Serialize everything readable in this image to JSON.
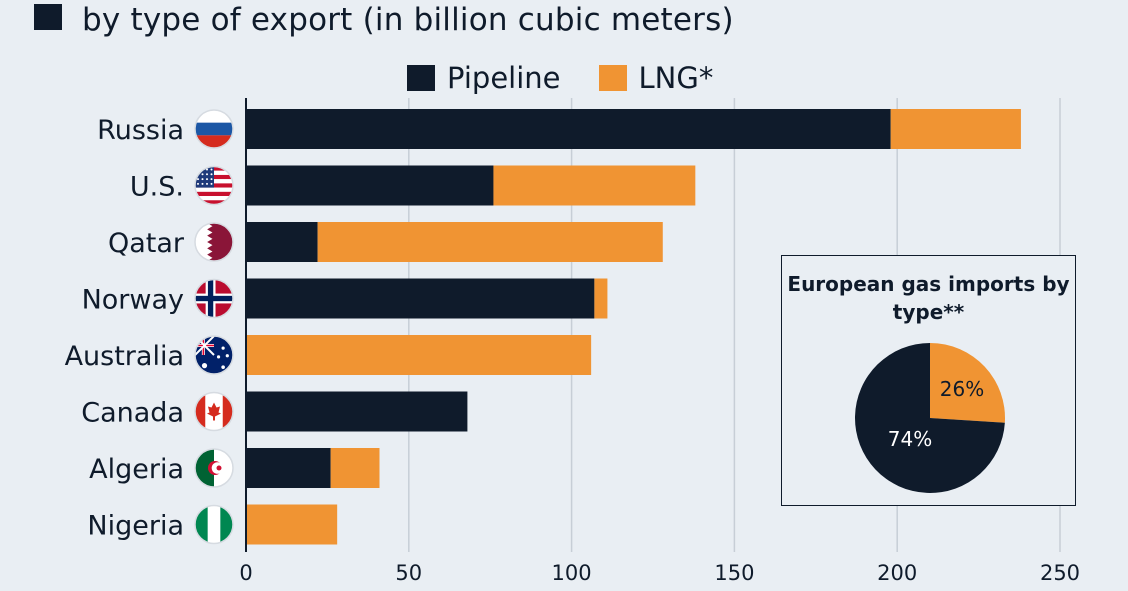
{
  "subtitle": "by type of export (in billion cubic meters)",
  "legend": [
    {
      "label": "Pipeline",
      "color": "#0f1b2b"
    },
    {
      "label": "LNG*",
      "color": "#f09433"
    }
  ],
  "colors": {
    "pipeline": "#0f1b2b",
    "lng": "#f09433",
    "grid": "#c7ced6",
    "background": "#e9eef3"
  },
  "chart_data": [
    {
      "type": "bar",
      "orientation": "horizontal",
      "stacked": true,
      "categories": [
        "Russia",
        "U.S.",
        "Qatar",
        "Norway",
        "Australia",
        "Canada",
        "Algeria",
        "Nigeria"
      ],
      "flag_icons": [
        "russia-flag-icon",
        "us-flag-icon",
        "qatar-flag-icon",
        "norway-flag-icon",
        "australia-flag-icon",
        "canada-flag-icon",
        "algeria-flag-icon",
        "nigeria-flag-icon"
      ],
      "series": [
        {
          "name": "Pipeline",
          "values": [
            198,
            76,
            22,
            107,
            0,
            68,
            26,
            0
          ]
        },
        {
          "name": "LNG*",
          "values": [
            40,
            62,
            106,
            4,
            106,
            0,
            15,
            28
          ]
        }
      ],
      "xlim": [
        0,
        250
      ],
      "xticks": [
        0,
        50,
        100,
        150,
        200,
        250
      ],
      "grid": true,
      "legend_position": "top"
    },
    {
      "type": "pie",
      "title": "European gas imports by type**",
      "labels": [
        "Pipeline",
        "LNG"
      ],
      "values": [
        74,
        26
      ],
      "value_labels": [
        "74%",
        "26%"
      ]
    }
  ]
}
